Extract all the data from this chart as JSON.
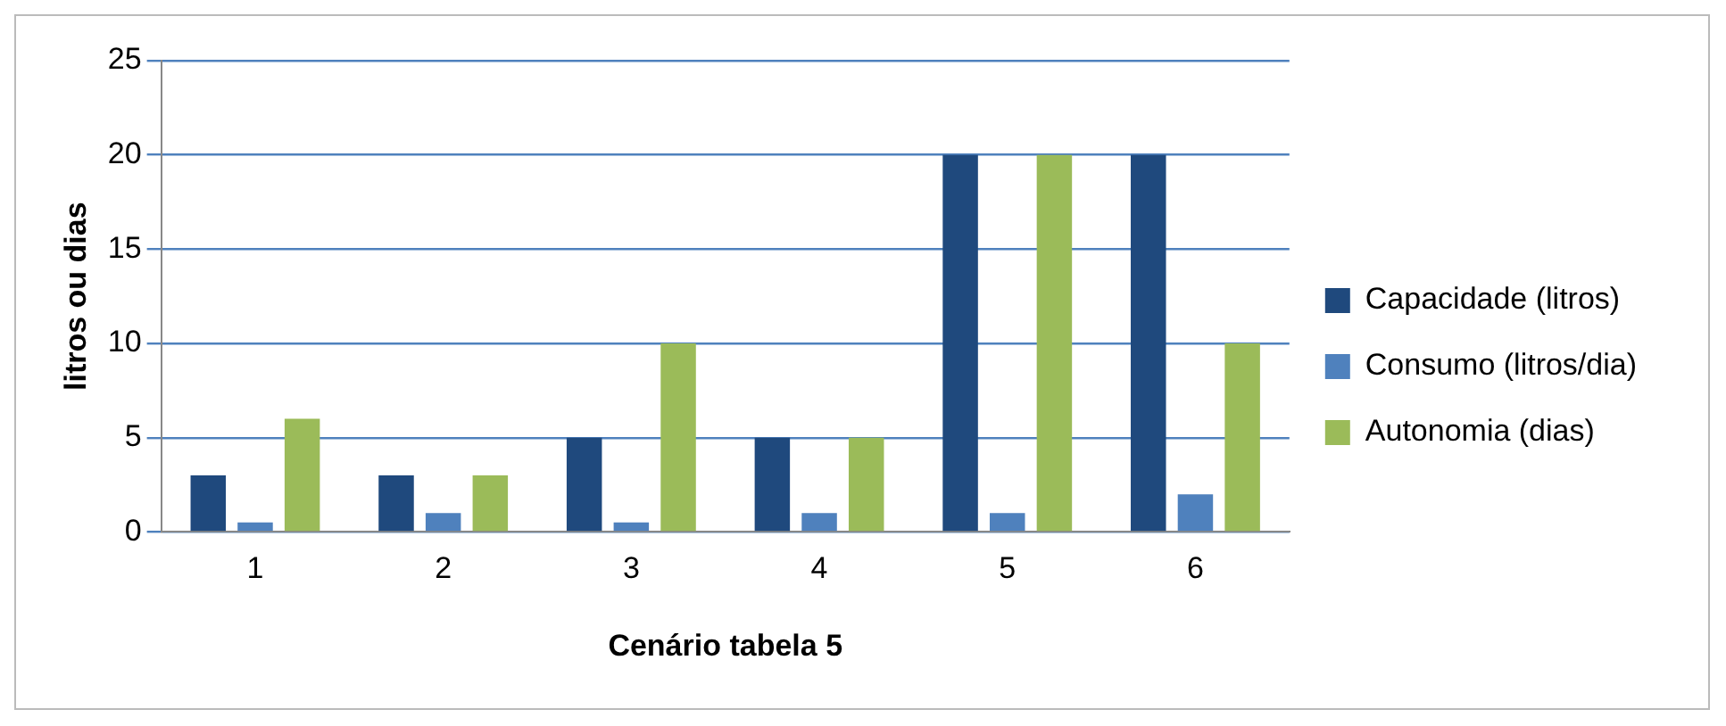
{
  "chart_data": {
    "type": "bar",
    "xlabel": "Cenário tabela 5",
    "ylabel": "litros ou dias",
    "categories": [
      "1",
      "2",
      "3",
      "4",
      "5",
      "6"
    ],
    "series": [
      {
        "name": "Capacidade (litros)",
        "color": "#1f497d",
        "values": [
          3,
          3,
          5,
          5,
          20,
          20
        ]
      },
      {
        "name": "Consumo (litros/dia)",
        "color": "#4f81bd",
        "values": [
          0.5,
          1,
          0.5,
          1,
          1,
          2
        ]
      },
      {
        "name": "Autonomia (dias)",
        "color": "#9bbb59",
        "values": [
          6,
          3,
          10,
          5,
          20,
          10
        ]
      }
    ],
    "ylim": [
      0,
      25
    ],
    "yticks": [
      0,
      5,
      10,
      15,
      20,
      25
    ],
    "grid": "y",
    "legend": "right"
  }
}
